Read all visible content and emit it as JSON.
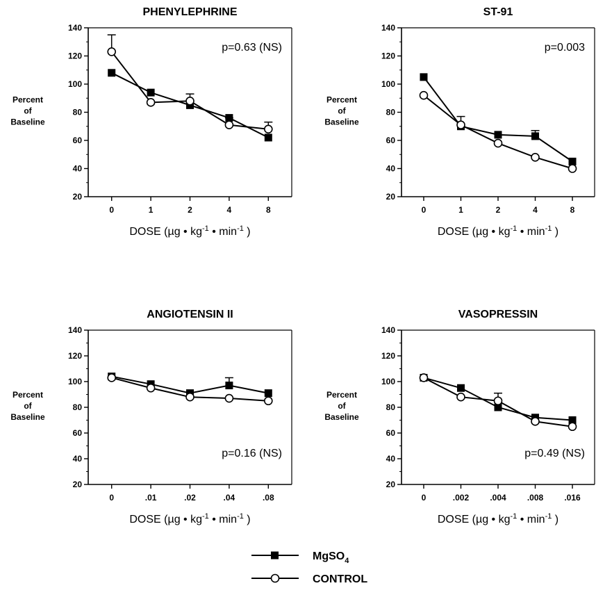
{
  "chart_data": [
    {
      "type": "line",
      "title": "PHENYLEPHRINE",
      "ylabel": [
        "Percent",
        "of",
        "Baseline"
      ],
      "xlabel": {
        "prefix": "DOSE (µg • kg",
        "sup1": "-1",
        "mid": " • min",
        "sup2": "-1",
        "suffix": " )"
      },
      "categories": [
        "0",
        "1",
        "2",
        "4",
        "8"
      ],
      "ylim": [
        20,
        140
      ],
      "yticks": [
        20,
        40,
        60,
        80,
        100,
        120,
        140
      ],
      "annotation": "p=0.63 (NS)",
      "annotation_pos": "top-right",
      "series": [
        {
          "values": [
            108,
            94,
            85,
            76,
            62
          ],
          "errors": [
            0,
            0,
            0,
            0,
            0
          ],
          "marker": "square"
        },
        {
          "values": [
            123,
            87,
            88,
            71,
            68
          ],
          "errors": [
            12,
            0,
            5,
            5,
            5
          ],
          "marker": "circle"
        }
      ]
    },
    {
      "type": "line",
      "title": "ST-91",
      "ylabel": [
        "Percent",
        "of",
        "Baseline"
      ],
      "xlabel": {
        "prefix": "DOSE (µg • kg",
        "sup1": "-1",
        "mid": " • min",
        "sup2": "-1",
        "suffix": " )"
      },
      "categories": [
        "0",
        "1",
        "2",
        "4",
        "8"
      ],
      "ylim": [
        20,
        140
      ],
      "yticks": [
        20,
        40,
        60,
        80,
        100,
        120,
        140
      ],
      "annotation": "p=0.003",
      "annotation_pos": "top-right",
      "series": [
        {
          "values": [
            105,
            70,
            64,
            63,
            45
          ],
          "errors": [
            0,
            0,
            0,
            4,
            0
          ],
          "marker": "square"
        },
        {
          "values": [
            92,
            71,
            58,
            48,
            40
          ],
          "errors": [
            0,
            6,
            0,
            0,
            0
          ],
          "marker": "circle"
        }
      ]
    },
    {
      "type": "line",
      "title": "ANGIOTENSIN II",
      "ylabel": [
        "Percent",
        "of",
        "Baseline"
      ],
      "xlabel": {
        "prefix": "DOSE (µg • kg",
        "sup1": "-1",
        "mid": " • min",
        "sup2": "-1",
        "suffix": " )"
      },
      "categories": [
        "0",
        ".01",
        ".02",
        ".04",
        ".08"
      ],
      "ylim": [
        20,
        140
      ],
      "yticks": [
        20,
        40,
        60,
        80,
        100,
        120,
        140
      ],
      "annotation": "p=0.16 (NS)",
      "annotation_pos": "bottom-right",
      "series": [
        {
          "values": [
            104,
            98,
            91,
            97,
            91
          ],
          "errors": [
            0,
            0,
            0,
            6,
            0
          ],
          "marker": "square"
        },
        {
          "values": [
            103,
            95,
            88,
            87,
            85
          ],
          "errors": [
            0,
            0,
            0,
            0,
            0
          ],
          "marker": "circle"
        }
      ]
    },
    {
      "type": "line",
      "title": "VASOPRESSIN",
      "ylabel": [
        "Percent",
        "of",
        "Baseline"
      ],
      "xlabel": {
        "prefix": "DOSE (µg • kg",
        "sup1": "-1",
        "mid": " • min",
        "sup2": "-1",
        "suffix": " )"
      },
      "categories": [
        "0",
        ".002",
        ".004",
        ".008",
        ".016"
      ],
      "ylim": [
        20,
        140
      ],
      "yticks": [
        20,
        40,
        60,
        80,
        100,
        120,
        140
      ],
      "annotation": "p=0.49 (NS)",
      "annotation_pos": "bottom-right",
      "series": [
        {
          "values": [
            103,
            95,
            80,
            72,
            70
          ],
          "errors": [
            0,
            0,
            0,
            0,
            0
          ],
          "marker": "square"
        },
        {
          "values": [
            103,
            88,
            85,
            69,
            65
          ],
          "errors": [
            0,
            0,
            6,
            0,
            0
          ],
          "marker": "circle"
        }
      ]
    }
  ],
  "legend": [
    {
      "label": "MgSO",
      "sub": "4",
      "marker": "square"
    },
    {
      "label": "CONTROL",
      "sub": "",
      "marker": "circle"
    }
  ],
  "colors": {
    "ink": "#000000",
    "open_marker_fill": "#ffffff"
  }
}
